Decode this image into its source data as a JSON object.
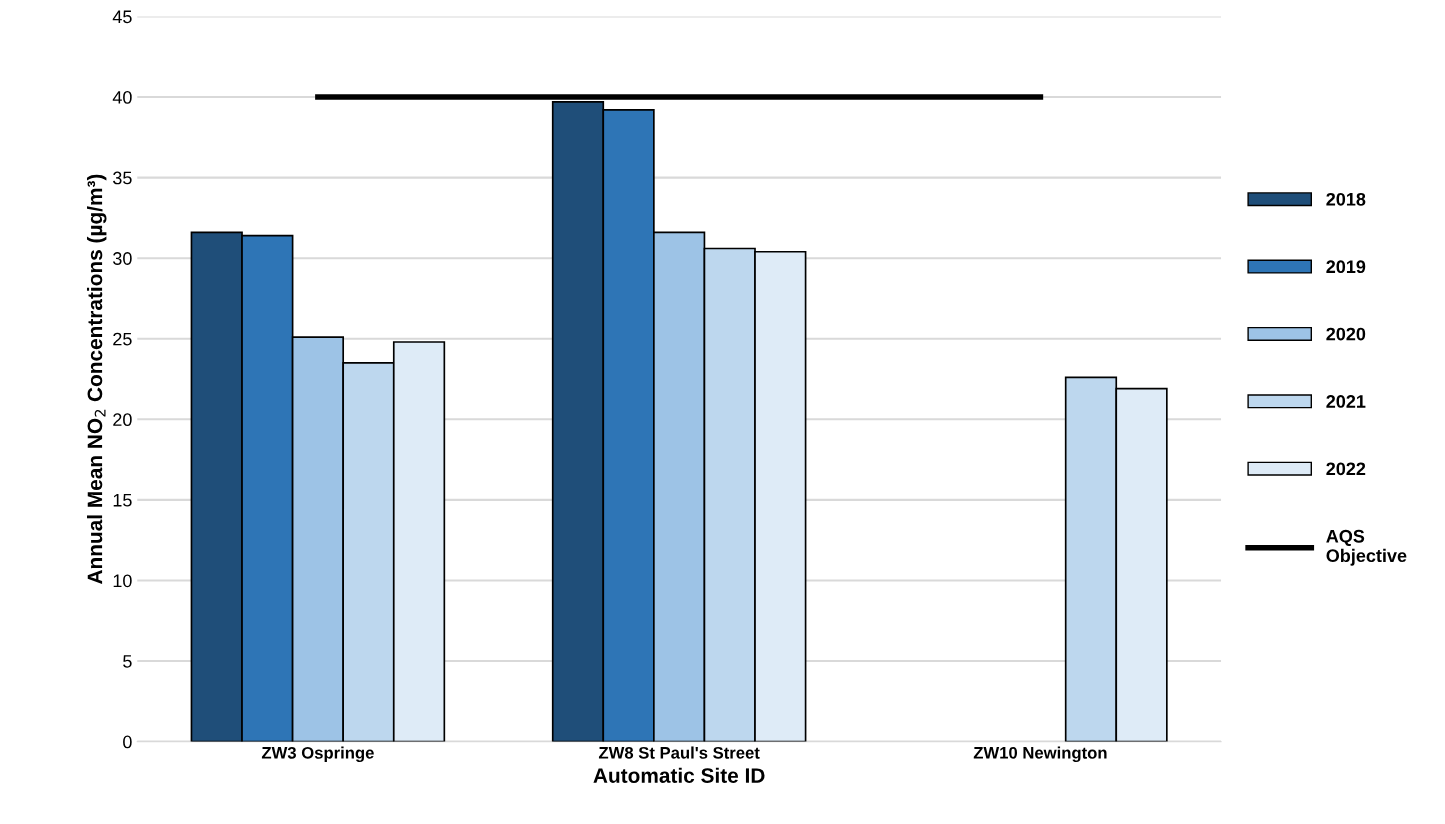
{
  "chart_data": {
    "type": "bar",
    "xlabel": "Automatic Site ID",
    "ylabel": "Annual Mean NO$_{2}$ Concentrations (µg/m³)",
    "categories": [
      "ZW3 Ospringe",
      "ZW8 St Paul's Street",
      "ZW10 Newington"
    ],
    "series": [
      {
        "name": "2018",
        "color": "#1f4e79",
        "values": [
          31.6,
          39.7,
          null
        ]
      },
      {
        "name": "2019",
        "color": "#2e75b6",
        "values": [
          31.4,
          39.2,
          null
        ]
      },
      {
        "name": "2020",
        "color": "#9dc3e6",
        "values": [
          25.1,
          31.6,
          null
        ]
      },
      {
        "name": "2021",
        "color": "#bdd7ee",
        "values": [
          23.5,
          30.6,
          22.6
        ]
      },
      {
        "name": "2022",
        "color": "#deebf7",
        "values": [
          24.8,
          30.4,
          21.9
        ]
      },
      {
        "name": "AQS\nObjective",
        "color": "#000000",
        "type": "line",
        "values": [
          40,
          40,
          40
        ]
      }
    ],
    "ylim": [
      0,
      45
    ],
    "yticks": [
      0,
      5,
      10,
      15,
      20,
      25,
      30,
      35,
      40,
      45
    ],
    "grid": "y",
    "legend": "right",
    "marker": "none",
    "line_style": "solid"
  }
}
